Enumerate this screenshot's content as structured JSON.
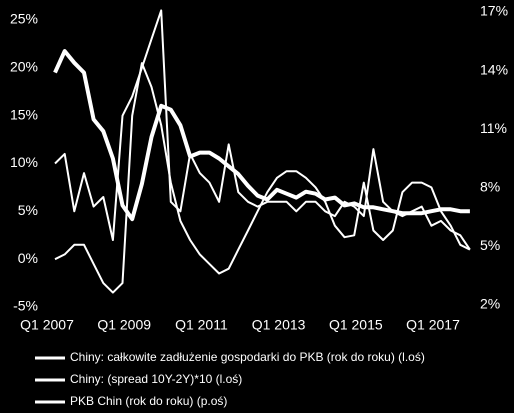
{
  "chart_data": {
    "type": "line",
    "categories": [
      "Q1 2007",
      null,
      null,
      null,
      null,
      null,
      null,
      null,
      "Q1 2009",
      null,
      null,
      null,
      null,
      null,
      null,
      null,
      "Q1 2011",
      null,
      null,
      null,
      null,
      null,
      null,
      null,
      "Q1 2013",
      null,
      null,
      null,
      null,
      null,
      null,
      null,
      "Q1 2015",
      null,
      null,
      null,
      null,
      null,
      null,
      null,
      "Q1 2017",
      null,
      null,
      null
    ],
    "series": [
      {
        "name": "Chiny: całkowite zadłużenie gospodarki do PKB (rok do roku) (l.oś)",
        "color": "#ffffff",
        "values": [
          10,
          11,
          5,
          9,
          5.5,
          6.5,
          2,
          15,
          17,
          20,
          23,
          26,
          6,
          5,
          11,
          9,
          8,
          6,
          12,
          7,
          6,
          5.5,
          6,
          6,
          6,
          5,
          6,
          6,
          5,
          4.5,
          6,
          5.5,
          4.5,
          11.5,
          6,
          5,
          4.5,
          5,
          5.5,
          3.5,
          4,
          3,
          2.5,
          1
        ]
      },
      {
        "name": "Chiny: (spread 10Y-2Y)*10 (l.oś)",
        "color": "#ffffff",
        "values": [
          0,
          0.5,
          1.5,
          1.5,
          -0.5,
          -2.5,
          -3.5,
          -2.5,
          15,
          20.5,
          18,
          14,
          8,
          4,
          2,
          0.5,
          -0.5,
          -1.5,
          -1,
          1,
          3,
          5,
          7,
          8.5,
          9.2,
          9.2,
          8.5,
          7.5,
          6,
          3.5,
          2.3,
          2.5,
          8,
          3,
          2,
          3,
          7,
          8,
          8,
          7.5,
          5,
          3.5,
          1.5,
          1
        ]
      },
      {
        "name": "PKB Chin (rok do roku) (p.oś)",
        "color": "#ffffff",
        "axis": "y2",
        "values": [
          13.9,
          15.0,
          14.4,
          13.9,
          11.5,
          10.9,
          9.5,
          7.1,
          6.4,
          8.2,
          10.6,
          12.2,
          12.0,
          11.2,
          9.6,
          9.8,
          9.8,
          9.5,
          9.1,
          8.7,
          8.1,
          7.6,
          7.4,
          7.9,
          7.7,
          7.5,
          7.8,
          7.7,
          7.4,
          7.5,
          7.1,
          7.2,
          7.0,
          7.0,
          6.9,
          6.8,
          6.7,
          6.7,
          6.7,
          6.8,
          6.9,
          6.9,
          6.8,
          6.8
        ]
      }
    ],
    "ylim": [
      -5,
      25
    ],
    "yticks": [
      {
        "value": -5,
        "label": "-5%"
      },
      {
        "value": 0,
        "label": "0%"
      },
      {
        "value": 5,
        "label": "5%"
      },
      {
        "value": 10,
        "label": "10%"
      },
      {
        "value": 15,
        "label": "15%"
      },
      {
        "value": 20,
        "label": "20%"
      },
      {
        "value": 25,
        "label": "25%"
      }
    ],
    "y2lim": [
      2,
      17
    ],
    "y2ticks": [
      {
        "value": 2,
        "label": "2%"
      },
      {
        "value": 5,
        "label": "5%"
      },
      {
        "value": 8,
        "label": "8%"
      },
      {
        "value": 11,
        "label": "11%"
      },
      {
        "value": 14,
        "label": "14%"
      },
      {
        "value": 17,
        "label": "17%"
      }
    ]
  }
}
